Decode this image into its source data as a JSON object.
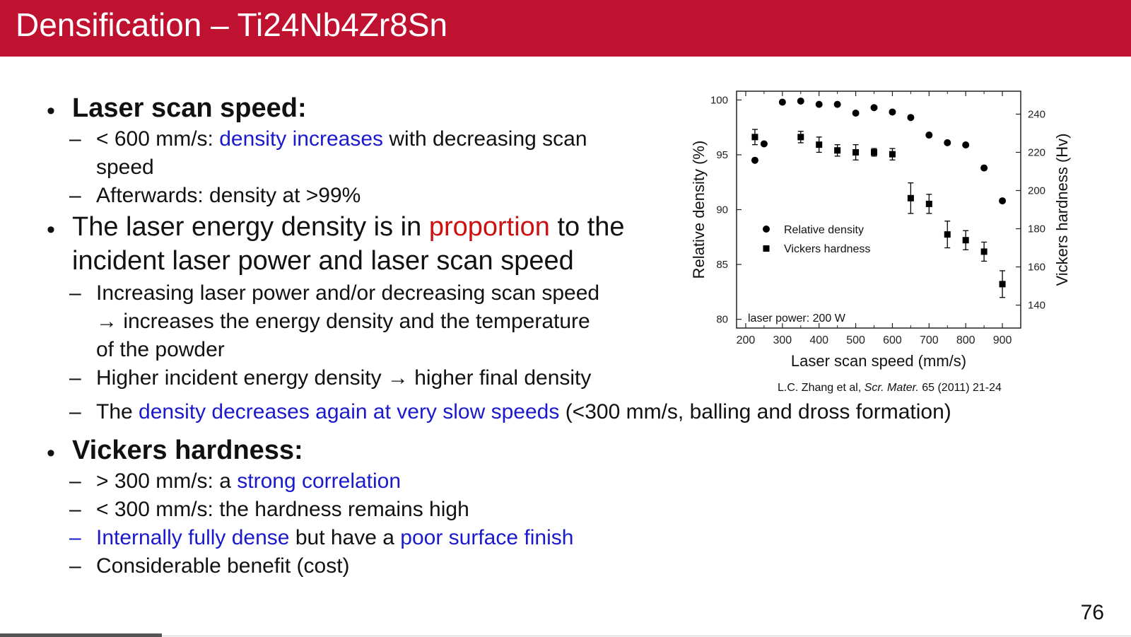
{
  "title": "Densification – Ti24Nb4Zr8Sn",
  "page_number": "76",
  "source_citation": {
    "authors": "L.C. Zhang et al, ",
    "journal": "Scr. Mater.",
    "details": " 65 (2011) 21-24"
  },
  "bullet_char": "•",
  "dash_char": "–",
  "content": {
    "scan_speed": {
      "heading": "Laser scan speed:",
      "sub1_a": "< 600 mm/s: ",
      "sub1_b": "density increases",
      "sub1_c": " with decreasing scan",
      "sub1_d": "speed",
      "sub2": "Afterwards: density at >99%"
    },
    "energy": {
      "line1_a": "The laser energy density is in ",
      "line1_b": "proportion",
      "line1_c": " to the",
      "line2": "incident laser power and laser scan speed",
      "sub1_a": "Increasing laser power and/or decreasing scan speed",
      "sub1_b": "→ increases the energy density and the temperature",
      "sub1_c": "of the powder",
      "sub2": "Higher incident energy density → higher final density",
      "sub3_a": "The ",
      "sub3_b": "density decreases again at very slow speeds",
      "sub3_c": " (<300 mm/s, balling and dross formation)"
    },
    "hardness": {
      "heading": "Vickers hardness:",
      "sub1_a": "> 300 mm/s: a ",
      "sub1_b": "strong correlation",
      "sub2": "< 300 mm/s: the hardness remains high",
      "sub3_a": "Internally fully dense",
      "sub3_b": " but have a ",
      "sub3_c": "poor surface finish",
      "sub4": "Considerable benefit (cost)"
    }
  },
  "colors": {
    "title_bar": "#be1230",
    "highlight_blue": "#1a1acc",
    "highlight_red": "#cc1111"
  },
  "chart_data": {
    "type": "scatter",
    "xlabel": "Laser scan speed (mm/s)",
    "ylabel": "Relative density (%)",
    "y2label": "Vickers hardness (Hv)",
    "xlim": [
      175,
      950
    ],
    "ylim": [
      79.2,
      100.8
    ],
    "y2lim": [
      128,
      252
    ],
    "xticks": [
      200,
      300,
      400,
      500,
      600,
      700,
      800,
      900
    ],
    "yticks": [
      80,
      85,
      90,
      95,
      100
    ],
    "y2ticks": [
      140,
      160,
      180,
      200,
      220,
      240
    ],
    "annotation": "laser power: 200 W",
    "legend_position": "center-left",
    "series": [
      {
        "name": "Relative density",
        "marker": "circle",
        "axis": "left",
        "x": [
          225,
          250,
          300,
          350,
          400,
          450,
          500,
          550,
          600,
          650,
          700,
          750,
          800,
          850,
          900
        ],
        "y": [
          94.5,
          96.0,
          99.8,
          99.9,
          99.6,
          99.6,
          98.8,
          99.3,
          98.9,
          98.4,
          96.8,
          96.1,
          95.9,
          93.8,
          90.8
        ]
      },
      {
        "name": "Vickers hardness",
        "marker": "square",
        "axis": "right",
        "x": [
          225,
          350,
          400,
          450,
          500,
          550,
          600,
          650,
          700,
          750,
          800,
          850,
          900
        ],
        "y": [
          228,
          228,
          224,
          221,
          220,
          220,
          219,
          196,
          193,
          177,
          174,
          168,
          151
        ],
        "err": [
          4,
          3,
          4,
          3,
          4,
          2,
          3,
          8,
          5,
          7,
          5,
          5,
          7
        ]
      }
    ]
  }
}
